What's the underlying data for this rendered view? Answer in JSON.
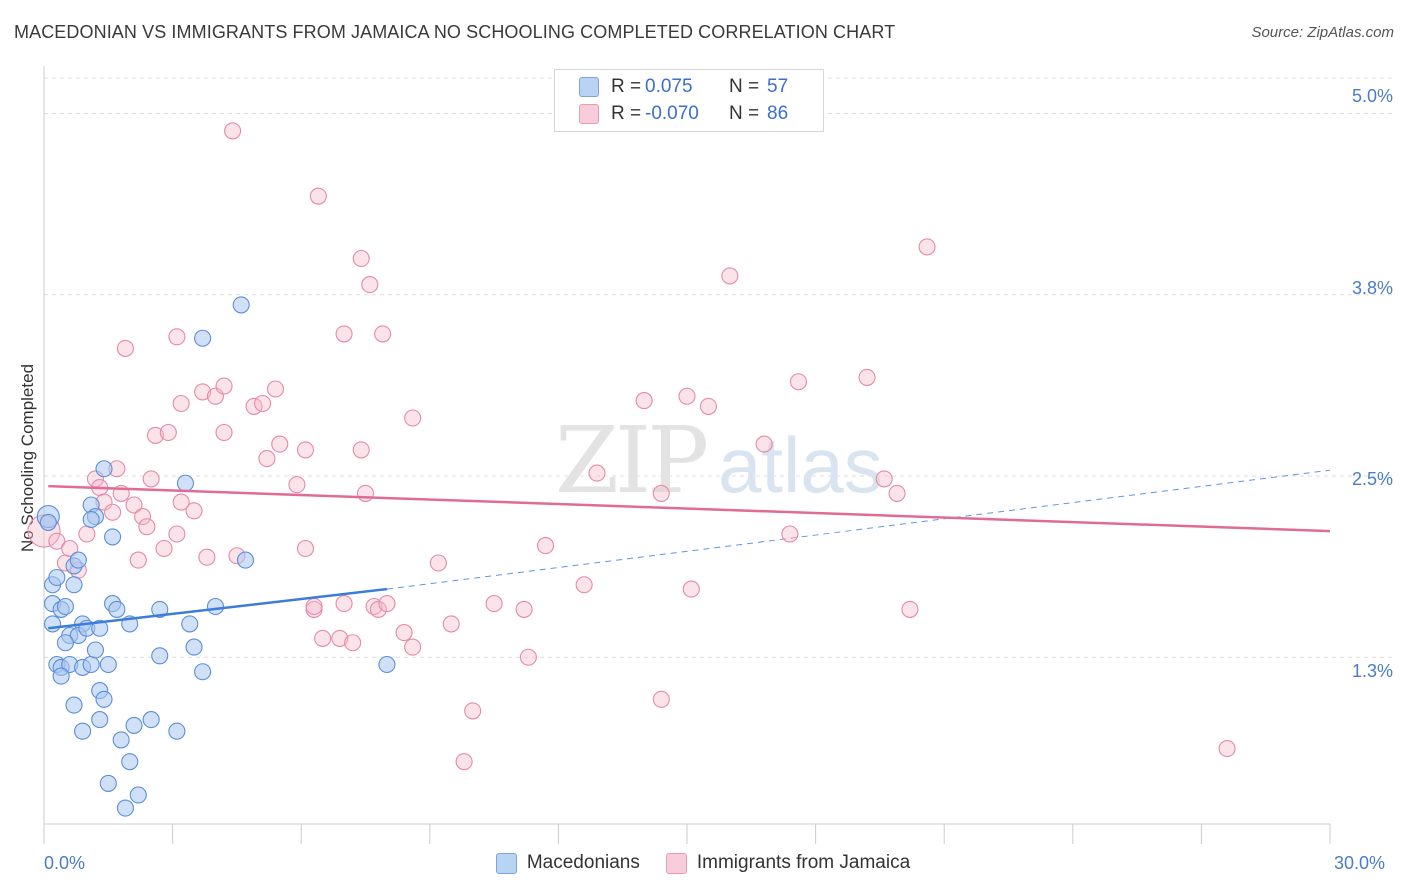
{
  "title": "MACEDONIAN VS IMMIGRANTS FROM JAMAICA NO SCHOOLING COMPLETED CORRELATION CHART",
  "source": "Source: ZipAtlas.com",
  "watermark": "ZIPatlas",
  "colors": {
    "blue_fill": "#a9c7f0",
    "blue_stroke": "#5b8fd8",
    "blue_line": "#3b7dd8",
    "pink_fill": "#f4b9cb",
    "pink_stroke": "#e58aa8",
    "pink_line": "#e06b95",
    "tick_label": "#4a7cc7",
    "grid": "#dcdcdc"
  },
  "legend": {
    "rows": [
      {
        "r_label": "R =",
        "r_value": "0.075",
        "n_label": "N =",
        "n_value": "57"
      },
      {
        "r_label": "R =",
        "r_value": "-0.070",
        "n_label": "N =",
        "n_value": "86"
      }
    ]
  },
  "chart_data": {
    "type": "scatter",
    "title": "MACEDONIAN VS IMMIGRANTS FROM JAMAICA NO SCHOOLING COMPLETED CORRELATION CHART",
    "xlabel": "",
    "ylabel": "No Schooling Completed",
    "xlim": [
      0,
      30
    ],
    "ylim": [
      0.1,
      5.3
    ],
    "x_tick_labels": [
      "0.0%",
      "30.0%"
    ],
    "x_tick_values": [
      0,
      30
    ],
    "y_tick_labels": [
      "1.3%",
      "2.5%",
      "3.8%",
      "5.0%"
    ],
    "y_tick_values": [
      1.25,
      2.5,
      3.75,
      5.0
    ],
    "grid": true,
    "legend_position": "top-center",
    "series": [
      {
        "name": "Macedonians",
        "r": 0.075,
        "n": 57,
        "trend": {
          "x": [
            0.1,
            8.0
          ],
          "y": [
            1.45,
            1.72
          ],
          "dashed_extension_to": [
            30.0,
            2.54
          ]
        },
        "points": [
          [
            0.1,
            2.22
          ],
          [
            0.1,
            2.18
          ],
          [
            0.2,
            1.75
          ],
          [
            0.3,
            1.8
          ],
          [
            0.2,
            1.62
          ],
          [
            0.2,
            1.48
          ],
          [
            0.4,
            1.58
          ],
          [
            0.5,
            1.6
          ],
          [
            0.7,
            1.88
          ],
          [
            0.8,
            1.92
          ],
          [
            0.7,
            1.75
          ],
          [
            0.6,
            1.4
          ],
          [
            0.9,
            1.48
          ],
          [
            0.8,
            1.4
          ],
          [
            1.0,
            1.45
          ],
          [
            1.1,
            2.3
          ],
          [
            1.2,
            2.22
          ],
          [
            1.1,
            2.2
          ],
          [
            1.4,
            2.55
          ],
          [
            1.6,
            2.08
          ],
          [
            1.6,
            1.62
          ],
          [
            1.7,
            1.58
          ],
          [
            1.3,
            1.45
          ],
          [
            0.3,
            1.2
          ],
          [
            0.4,
            1.18
          ],
          [
            0.6,
            1.2
          ],
          [
            0.4,
            1.12
          ],
          [
            0.9,
            1.18
          ],
          [
            1.1,
            1.2
          ],
          [
            1.5,
            1.2
          ],
          [
            1.3,
            1.02
          ],
          [
            1.4,
            0.96
          ],
          [
            0.7,
            0.92
          ],
          [
            1.3,
            0.82
          ],
          [
            0.9,
            0.74
          ],
          [
            1.8,
            0.68
          ],
          [
            2.1,
            0.78
          ],
          [
            2.5,
            0.82
          ],
          [
            3.1,
            0.74
          ],
          [
            2.0,
            0.53
          ],
          [
            1.5,
            0.38
          ],
          [
            2.2,
            0.3
          ],
          [
            1.9,
            0.21
          ],
          [
            2.7,
            1.26
          ],
          [
            2.7,
            1.58
          ],
          [
            3.4,
            1.48
          ],
          [
            3.5,
            1.32
          ],
          [
            3.7,
            1.15
          ],
          [
            4.0,
            1.6
          ],
          [
            3.3,
            2.45
          ],
          [
            3.7,
            3.45
          ],
          [
            4.6,
            3.68
          ],
          [
            4.7,
            1.92
          ],
          [
            8.0,
            1.2
          ],
          [
            2.0,
            1.48
          ],
          [
            1.2,
            1.3
          ],
          [
            0.5,
            1.35
          ]
        ]
      },
      {
        "name": "Immigrants from Jamaica",
        "r": -0.07,
        "n": 86,
        "trend": {
          "x": [
            0.1,
            30.0
          ],
          "y": [
            2.43,
            2.12
          ]
        },
        "points": [
          [
            0.0,
            2.12
          ],
          [
            0.3,
            2.05
          ],
          [
            0.5,
            1.9
          ],
          [
            0.6,
            2.0
          ],
          [
            0.8,
            1.85
          ],
          [
            1.0,
            2.1
          ],
          [
            1.2,
            2.48
          ],
          [
            1.3,
            2.42
          ],
          [
            1.4,
            2.32
          ],
          [
            1.6,
            2.25
          ],
          [
            1.7,
            2.55
          ],
          [
            1.8,
            2.38
          ],
          [
            2.1,
            2.3
          ],
          [
            2.3,
            2.22
          ],
          [
            2.4,
            2.15
          ],
          [
            2.2,
            1.92
          ],
          [
            2.5,
            2.48
          ],
          [
            2.8,
            2.0
          ],
          [
            3.2,
            2.32
          ],
          [
            3.1,
            2.1
          ],
          [
            3.5,
            2.26
          ],
          [
            3.8,
            1.94
          ],
          [
            4.5,
            1.95
          ],
          [
            4.2,
            2.8
          ],
          [
            2.6,
            2.78
          ],
          [
            2.9,
            2.8
          ],
          [
            3.2,
            3.0
          ],
          [
            3.7,
            3.08
          ],
          [
            4.0,
            3.05
          ],
          [
            4.2,
            3.12
          ],
          [
            4.9,
            2.98
          ],
          [
            5.1,
            3.0
          ],
          [
            5.2,
            2.62
          ],
          [
            5.4,
            3.1
          ],
          [
            5.5,
            2.72
          ],
          [
            5.9,
            2.44
          ],
          [
            6.1,
            2.0
          ],
          [
            6.1,
            2.68
          ],
          [
            6.3,
            1.58
          ],
          [
            6.5,
            1.38
          ],
          [
            6.9,
            1.38
          ],
          [
            7.0,
            1.62
          ],
          [
            7.2,
            1.35
          ],
          [
            7.4,
            2.68
          ],
          [
            7.5,
            2.38
          ],
          [
            7.7,
            1.6
          ],
          [
            7.8,
            1.58
          ],
          [
            8.0,
            1.62
          ],
          [
            8.4,
            1.42
          ],
          [
            8.6,
            1.32
          ],
          [
            9.2,
            1.9
          ],
          [
            9.5,
            1.48
          ],
          [
            10.0,
            0.88
          ],
          [
            9.8,
            0.53
          ],
          [
            10.5,
            1.62
          ],
          [
            11.2,
            1.58
          ],
          [
            11.3,
            1.25
          ],
          [
            11.7,
            2.02
          ],
          [
            12.6,
            1.75
          ],
          [
            12.9,
            2.52
          ],
          [
            14.0,
            3.02
          ],
          [
            14.4,
            2.38
          ],
          [
            14.4,
            0.96
          ],
          [
            15.0,
            3.05
          ],
          [
            15.1,
            1.72
          ],
          [
            15.5,
            2.98
          ],
          [
            16.0,
            3.88
          ],
          [
            16.8,
            2.72
          ],
          [
            17.4,
            2.1
          ],
          [
            17.6,
            3.15
          ],
          [
            19.2,
            3.18
          ],
          [
            19.6,
            2.48
          ],
          [
            19.9,
            2.38
          ],
          [
            20.2,
            1.58
          ],
          [
            20.6,
            4.08
          ],
          [
            27.6,
            0.62
          ],
          [
            4.4,
            4.88
          ],
          [
            6.4,
            4.43
          ],
          [
            7.4,
            4.0
          ],
          [
            7.6,
            3.82
          ],
          [
            7.9,
            3.48
          ],
          [
            7.0,
            3.48
          ],
          [
            3.1,
            3.46
          ],
          [
            1.9,
            3.38
          ],
          [
            8.6,
            2.9
          ],
          [
            6.3,
            1.6
          ]
        ]
      }
    ]
  }
}
